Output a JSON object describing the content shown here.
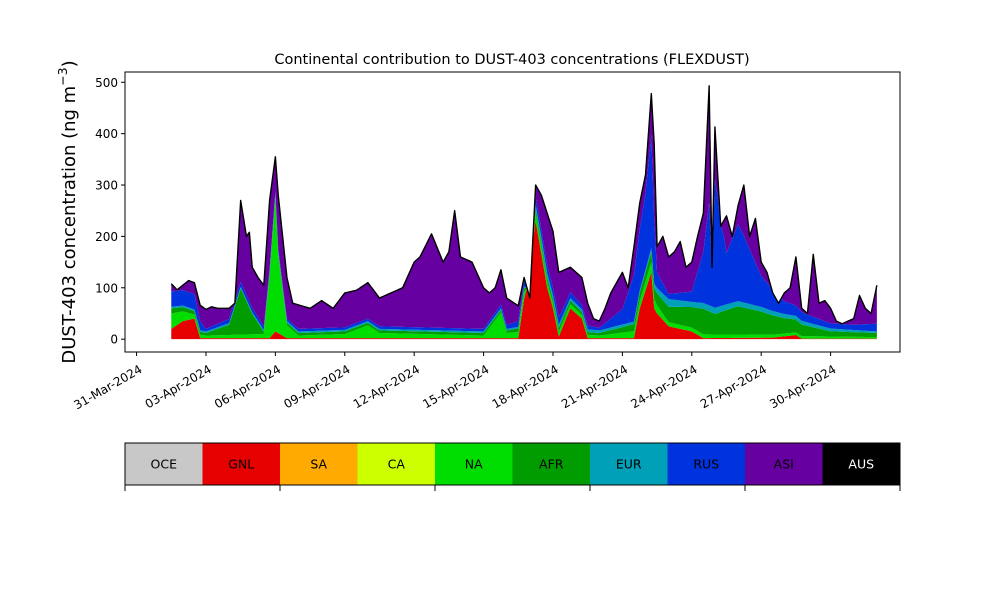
{
  "chart_data": {
    "type": "area",
    "stacked": true,
    "title": "Continental contribution to DUST-403 concentrations (FLEXDUST)",
    "ylabel": "DUST-403 concentration (ng m",
    "ylabel_sup": "−3",
    "ylabel_close": ")",
    "xlabel": "",
    "x_start": "2024-03-31",
    "x_end": "2024-05-03",
    "data_start": "2024-04-01T12:00",
    "step_hours": 3,
    "xlim": [
      "2024-03-30T12:00",
      "2024-05-03T00:00"
    ],
    "ylim": [
      -25,
      520
    ],
    "yticks": [
      0,
      100,
      200,
      300,
      400,
      500
    ],
    "xticks": [
      {
        "date": "2024-03-31",
        "label": "31-Mar-2024"
      },
      {
        "date": "2024-04-03",
        "label": "03-Apr-2024"
      },
      {
        "date": "2024-04-06",
        "label": "06-Apr-2024"
      },
      {
        "date": "2024-04-09",
        "label": "09-Apr-2024"
      },
      {
        "date": "2024-04-12",
        "label": "12-Apr-2024"
      },
      {
        "date": "2024-04-15",
        "label": "15-Apr-2024"
      },
      {
        "date": "2024-04-18",
        "label": "18-Apr-2024"
      },
      {
        "date": "2024-04-21",
        "label": "21-Apr-2024"
      },
      {
        "date": "2024-04-24",
        "label": "24-Apr-2024"
      },
      {
        "date": "2024-04-27",
        "label": "27-Apr-2024"
      },
      {
        "date": "2024-04-30",
        "label": "30-Apr-2024"
      }
    ],
    "total_keyframes": [
      [
        "2024-04-01T12:00",
        108
      ],
      [
        "2024-04-01T18:00",
        96
      ],
      [
        "2024-04-02T00:00",
        105
      ],
      [
        "2024-04-02T06:00",
        114
      ],
      [
        "2024-04-02T12:00",
        110
      ],
      [
        "2024-04-02T18:00",
        66
      ],
      [
        "2024-04-03T00:00",
        58
      ],
      [
        "2024-04-03T06:00",
        63
      ],
      [
        "2024-04-03T12:00",
        60
      ],
      [
        "2024-04-04T00:00",
        60
      ],
      [
        "2024-04-04T06:00",
        70
      ],
      [
        "2024-04-04T12:00",
        270
      ],
      [
        "2024-04-04T18:00",
        200
      ],
      [
        "2024-04-04T21:00",
        208
      ],
      [
        "2024-04-05T00:00",
        140
      ],
      [
        "2024-04-05T06:00",
        120
      ],
      [
        "2024-04-05T12:00",
        105
      ],
      [
        "2024-04-05T18:00",
        270
      ],
      [
        "2024-04-06T00:00",
        355
      ],
      [
        "2024-04-06T03:00",
        280
      ],
      [
        "2024-04-06T12:00",
        120
      ],
      [
        "2024-04-06T18:00",
        70
      ],
      [
        "2024-04-07T12:00",
        60
      ],
      [
        "2024-04-08T00:00",
        75
      ],
      [
        "2024-04-08T12:00",
        60
      ],
      [
        "2024-04-09T00:00",
        90
      ],
      [
        "2024-04-09T12:00",
        95
      ],
      [
        "2024-04-10T00:00",
        110
      ],
      [
        "2024-04-10T12:00",
        80
      ],
      [
        "2024-04-11T00:00",
        90
      ],
      [
        "2024-04-11T12:00",
        100
      ],
      [
        "2024-04-12T00:00",
        150
      ],
      [
        "2024-04-12T06:00",
        160
      ],
      [
        "2024-04-12T18:00",
        205
      ],
      [
        "2024-04-13T06:00",
        150
      ],
      [
        "2024-04-13T12:00",
        170
      ],
      [
        "2024-04-13T18:00",
        250
      ],
      [
        "2024-04-14T00:00",
        160
      ],
      [
        "2024-04-14T12:00",
        150
      ],
      [
        "2024-04-15T00:00",
        100
      ],
      [
        "2024-04-15T06:00",
        90
      ],
      [
        "2024-04-15T12:00",
        100
      ],
      [
        "2024-04-15T18:00",
        135
      ],
      [
        "2024-04-16T00:00",
        80
      ],
      [
        "2024-04-16T12:00",
        65
      ],
      [
        "2024-04-16T18:00",
        120
      ],
      [
        "2024-04-17T00:00",
        80
      ],
      [
        "2024-04-17T06:00",
        300
      ],
      [
        "2024-04-17T12:00",
        280
      ],
      [
        "2024-04-18T00:00",
        210
      ],
      [
        "2024-04-18T06:00",
        130
      ],
      [
        "2024-04-18T18:00",
        140
      ],
      [
        "2024-04-19T06:00",
        120
      ],
      [
        "2024-04-19T12:00",
        70
      ],
      [
        "2024-04-19T18:00",
        40
      ],
      [
        "2024-04-20T00:00",
        35
      ],
      [
        "2024-04-20T06:00",
        60
      ],
      [
        "2024-04-20T12:00",
        90
      ],
      [
        "2024-04-21T00:00",
        130
      ],
      [
        "2024-04-21T06:00",
        100
      ],
      [
        "2024-04-21T12:00",
        180
      ],
      [
        "2024-04-21T18:00",
        265
      ],
      [
        "2024-04-22T00:00",
        320
      ],
      [
        "2024-04-22T06:00",
        478
      ],
      [
        "2024-04-22T09:00",
        380
      ],
      [
        "2024-04-22T12:00",
        180
      ],
      [
        "2024-04-22T18:00",
        200
      ],
      [
        "2024-04-23T00:00",
        160
      ],
      [
        "2024-04-23T06:00",
        170
      ],
      [
        "2024-04-23T12:00",
        190
      ],
      [
        "2024-04-23T18:00",
        140
      ],
      [
        "2024-04-24T00:00",
        150
      ],
      [
        "2024-04-24T06:00",
        200
      ],
      [
        "2024-04-24T12:00",
        245
      ],
      [
        "2024-04-24T18:00",
        493
      ],
      [
        "2024-04-24T21:00",
        140
      ],
      [
        "2024-04-25T00:00",
        413
      ],
      [
        "2024-04-25T06:00",
        220
      ],
      [
        "2024-04-25T12:00",
        240
      ],
      [
        "2024-04-25T18:00",
        200
      ],
      [
        "2024-04-26T00:00",
        260
      ],
      [
        "2024-04-26T06:00",
        300
      ],
      [
        "2024-04-26T12:00",
        200
      ],
      [
        "2024-04-26T18:00",
        235
      ],
      [
        "2024-04-27T00:00",
        150
      ],
      [
        "2024-04-27T06:00",
        130
      ],
      [
        "2024-04-27T12:00",
        90
      ],
      [
        "2024-04-27T18:00",
        70
      ],
      [
        "2024-04-28T00:00",
        90
      ],
      [
        "2024-04-28T06:00",
        100
      ],
      [
        "2024-04-28T12:00",
        160
      ],
      [
        "2024-04-28T18:00",
        60
      ],
      [
        "2024-04-29T00:00",
        50
      ],
      [
        "2024-04-29T06:00",
        165
      ],
      [
        "2024-04-29T12:00",
        70
      ],
      [
        "2024-04-29T18:00",
        75
      ],
      [
        "2024-04-30T00:00",
        60
      ],
      [
        "2024-04-30T06:00",
        35
      ],
      [
        "2024-04-30T12:00",
        30
      ],
      [
        "2024-05-01T00:00",
        40
      ],
      [
        "2024-05-01T06:00",
        85
      ],
      [
        "2024-05-01T12:00",
        60
      ],
      [
        "2024-05-01T18:00",
        50
      ],
      [
        "2024-05-02T00:00",
        105
      ]
    ],
    "series": [
      {
        "name": "OCE",
        "color": "#c8c8c8",
        "keyframes": [
          [
            "2024-04-01T12:00",
            0
          ]
        ]
      },
      {
        "name": "GNL",
        "color": "#e60000",
        "keyframes": [
          [
            "2024-04-01T12:00",
            20
          ],
          [
            "2024-04-02T00:00",
            35
          ],
          [
            "2024-04-02T12:00",
            40
          ],
          [
            "2024-04-02T18:00",
            2
          ],
          [
            "2024-04-05T18:00",
            2
          ],
          [
            "2024-04-06T00:00",
            15
          ],
          [
            "2024-04-06T12:00",
            2
          ],
          [
            "2024-04-16T12:00",
            2
          ],
          [
            "2024-04-17T06:00",
            230
          ],
          [
            "2024-04-17T18:00",
            100
          ],
          [
            "2024-04-18T00:00",
            60
          ],
          [
            "2024-04-18T06:00",
            5
          ],
          [
            "2024-04-18T18:00",
            60
          ],
          [
            "2024-04-19T06:00",
            40
          ],
          [
            "2024-04-19T12:00",
            2
          ],
          [
            "2024-04-21T12:00",
            2
          ],
          [
            "2024-04-21T18:00",
            60
          ],
          [
            "2024-04-22T06:00",
            130
          ],
          [
            "2024-04-22T09:00",
            60
          ],
          [
            "2024-04-22T12:00",
            50
          ],
          [
            "2024-04-23T00:00",
            25
          ],
          [
            "2024-04-24T00:00",
            15
          ],
          [
            "2024-04-24T12:00",
            2
          ],
          [
            "2024-04-27T12:00",
            3
          ],
          [
            "2024-04-28T12:00",
            8
          ],
          [
            "2024-04-28T18:00",
            1
          ],
          [
            "2024-05-02T00:00",
            1
          ]
        ]
      },
      {
        "name": "SA",
        "color": "#ffaa00",
        "keyframes": [
          [
            "2024-04-01T12:00",
            0
          ]
        ]
      },
      {
        "name": "CA",
        "color": "#ccff00",
        "keyframes": [
          [
            "2024-04-01T12:00",
            0
          ]
        ]
      },
      {
        "name": "NA",
        "color": "#00dd00",
        "keyframes": [
          [
            "2024-04-01T12:00",
            30
          ],
          [
            "2024-04-02T12:00",
            8
          ],
          [
            "2024-04-03T00:00",
            5
          ],
          [
            "2024-04-05T12:00",
            8
          ],
          [
            "2024-04-05T18:00",
            120
          ],
          [
            "2024-04-06T00:00",
            260
          ],
          [
            "2024-04-06T03:00",
            150
          ],
          [
            "2024-04-06T12:00",
            25
          ],
          [
            "2024-04-07T00:00",
            5
          ],
          [
            "2024-04-09T00:00",
            8
          ],
          [
            "2024-04-10T00:00",
            25
          ],
          [
            "2024-04-10T12:00",
            10
          ],
          [
            "2024-04-15T00:00",
            5
          ],
          [
            "2024-04-15T18:00",
            50
          ],
          [
            "2024-04-16T00:00",
            10
          ],
          [
            "2024-04-17T06:00",
            15
          ],
          [
            "2024-04-18T00:00",
            10
          ],
          [
            "2024-04-20T00:00",
            5
          ],
          [
            "2024-04-21T18:00",
            15
          ],
          [
            "2024-04-22T06:00",
            20
          ],
          [
            "2024-04-23T00:00",
            8
          ],
          [
            "2024-04-27T00:00",
            6
          ],
          [
            "2024-05-02T00:00",
            3
          ]
        ]
      },
      {
        "name": "AFR",
        "color": "#009c00",
        "keyframes": [
          [
            "2024-04-01T12:00",
            10
          ],
          [
            "2024-04-03T00:00",
            5
          ],
          [
            "2024-04-04T00:00",
            20
          ],
          [
            "2024-04-04T12:00",
            90
          ],
          [
            "2024-04-05T00:00",
            40
          ],
          [
            "2024-04-05T12:00",
            5
          ],
          [
            "2024-04-06T12:00",
            5
          ],
          [
            "2024-04-08T00:00",
            5
          ],
          [
            "2024-04-16T00:00",
            5
          ],
          [
            "2024-04-17T06:00",
            10
          ],
          [
            "2024-04-18T00:00",
            8
          ],
          [
            "2024-04-20T00:00",
            5
          ],
          [
            "2024-04-21T18:00",
            15
          ],
          [
            "2024-04-22T06:00",
            20
          ],
          [
            "2024-04-23T00:00",
            30
          ],
          [
            "2024-04-24T00:00",
            40
          ],
          [
            "2024-04-24T12:00",
            50
          ],
          [
            "2024-04-25T00:00",
            40
          ],
          [
            "2024-04-26T00:00",
            55
          ],
          [
            "2024-04-27T00:00",
            45
          ],
          [
            "2024-04-28T00:00",
            30
          ],
          [
            "2024-04-29T00:00",
            20
          ],
          [
            "2024-04-30T00:00",
            10
          ],
          [
            "2024-05-02T00:00",
            8
          ]
        ]
      },
      {
        "name": "EUR",
        "color": "#00a0b8",
        "keyframes": [
          [
            "2024-04-01T12:00",
            3
          ],
          [
            "2024-04-17T00:00",
            3
          ],
          [
            "2024-04-17T12:00",
            10
          ],
          [
            "2024-04-18T12:00",
            5
          ],
          [
            "2024-04-22T00:00",
            5
          ],
          [
            "2024-04-23T00:00",
            15
          ],
          [
            "2024-04-24T00:00",
            10
          ],
          [
            "2024-04-25T00:00",
            12
          ],
          [
            "2024-04-26T00:00",
            10
          ],
          [
            "2024-04-28T00:00",
            8
          ],
          [
            "2024-05-02T00:00",
            3
          ]
        ]
      },
      {
        "name": "RUS",
        "color": "#0033dd",
        "keyframes": [
          [
            "2024-04-01T12:00",
            30
          ],
          [
            "2024-04-02T12:00",
            30
          ],
          [
            "2024-04-03T00:00",
            5
          ],
          [
            "2024-04-04T12:00",
            10
          ],
          [
            "2024-04-06T00:00",
            5
          ],
          [
            "2024-04-10T00:00",
            5
          ],
          [
            "2024-04-15T00:00",
            5
          ],
          [
            "2024-04-16T00:00",
            8
          ],
          [
            "2024-04-17T06:00",
            15
          ],
          [
            "2024-04-18T00:00",
            15
          ],
          [
            "2024-04-19T00:00",
            10
          ],
          [
            "2024-04-20T00:00",
            5
          ],
          [
            "2024-04-21T00:00",
            30
          ],
          [
            "2024-04-22T00:00",
            150
          ],
          [
            "2024-04-22T06:00",
            220
          ],
          [
            "2024-04-22T12:00",
            30
          ],
          [
            "2024-04-23T00:00",
            10
          ],
          [
            "2024-04-24T00:00",
            20
          ],
          [
            "2024-04-24T12:00",
            100
          ],
          [
            "2024-04-24T18:00",
            200
          ],
          [
            "2024-04-25T00:00",
            250
          ],
          [
            "2024-04-25T12:00",
            100
          ],
          [
            "2024-04-26T00:00",
            150
          ],
          [
            "2024-04-26T06:00",
            130
          ],
          [
            "2024-04-27T00:00",
            60
          ],
          [
            "2024-04-28T00:00",
            25
          ],
          [
            "2024-04-29T00:00",
            15
          ],
          [
            "2024-04-30T00:00",
            10
          ],
          [
            "2024-05-01T00:00",
            10
          ],
          [
            "2024-05-02T00:00",
            15
          ]
        ]
      },
      {
        "name": "ASI",
        "color": "#6600a0",
        "keyframes": [
          [
            "2024-04-01T12:00",
            0
          ]
        ]
      },
      {
        "name": "AUS",
        "color": "#000000",
        "keyframes": [
          [
            "2024-04-01T12:00",
            0
          ]
        ]
      }
    ],
    "residual_series": "ASI",
    "legend": {
      "placement": "bottom",
      "entries": [
        {
          "label": "OCE",
          "color": "#c8c8c8",
          "text_color": "#000000"
        },
        {
          "label": "GNL",
          "color": "#e60000",
          "text_color": "#000000"
        },
        {
          "label": "SA",
          "color": "#ffaa00",
          "text_color": "#000000"
        },
        {
          "label": "CA",
          "color": "#ccff00",
          "text_color": "#000000"
        },
        {
          "label": "NA",
          "color": "#00dd00",
          "text_color": "#000000"
        },
        {
          "label": "AFR",
          "color": "#009c00",
          "text_color": "#000000"
        },
        {
          "label": "EUR",
          "color": "#00a0b8",
          "text_color": "#000000"
        },
        {
          "label": "RUS",
          "color": "#0033dd",
          "text_color": "#000000"
        },
        {
          "label": "ASI",
          "color": "#6600a0",
          "text_color": "#000000"
        },
        {
          "label": "AUS",
          "color": "#000000",
          "text_color": "#ffffff"
        }
      ]
    },
    "grid": false
  }
}
